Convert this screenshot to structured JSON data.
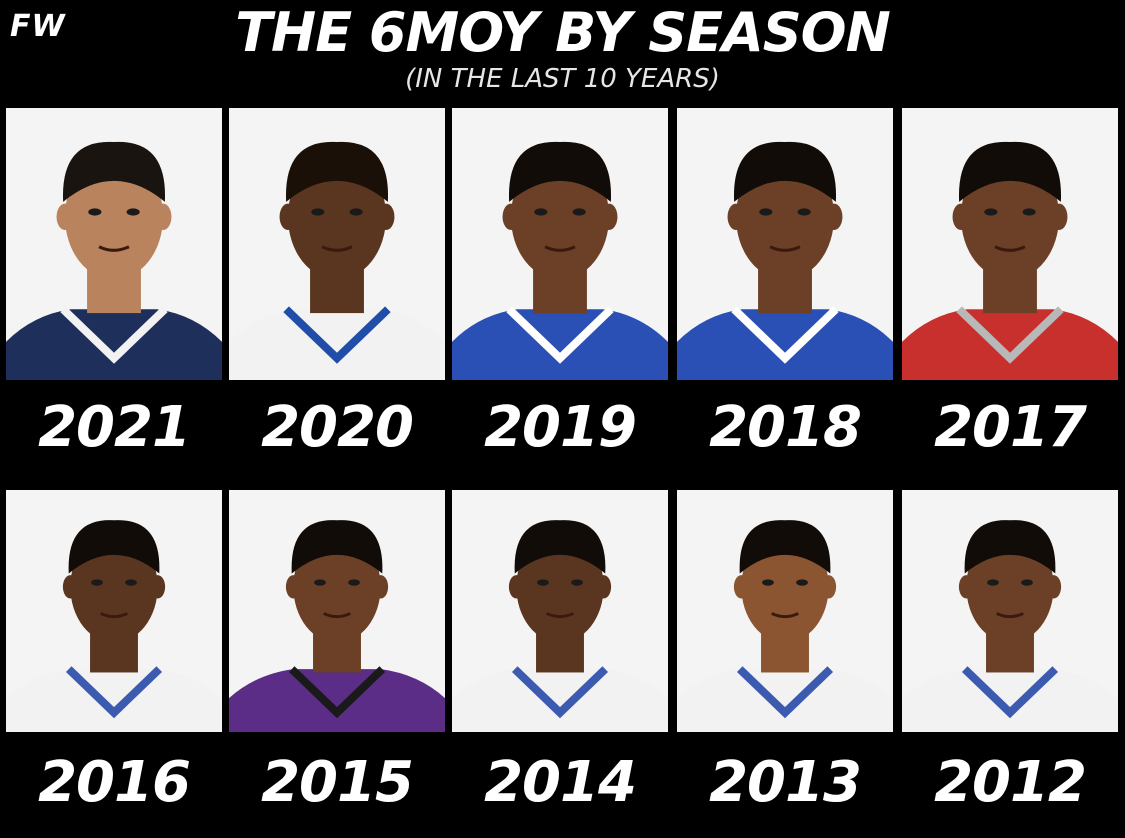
{
  "header": {
    "logo": "FW",
    "title": "THE 6MOY BY SEASON",
    "subtitle": "(IN THE LAST 10 YEARS)"
  },
  "winners": [
    {
      "year": "2021",
      "jersey_color": "#1e2f5c",
      "trim_color": "#f2f2f2",
      "skin": "#b8835d",
      "hair": "#1a1410"
    },
    {
      "year": "2020",
      "jersey_color": "#f2f2f2",
      "trim_color": "#1f4da8",
      "skin": "#5a3620",
      "hair": "#1a1008"
    },
    {
      "year": "2019",
      "jersey_color": "#2a4fb5",
      "trim_color": "#ffffff",
      "skin": "#6b4026",
      "hair": "#120c08"
    },
    {
      "year": "2018",
      "jersey_color": "#2a4fb5",
      "trim_color": "#ffffff",
      "skin": "#6b4026",
      "hair": "#120c08"
    },
    {
      "year": "2017",
      "jersey_color": "#c8302e",
      "trim_color": "#b8b8b8",
      "skin": "#6b4026",
      "hair": "#120c08"
    },
    {
      "year": "2016",
      "jersey_color": "#f2f2f2",
      "trim_color": "#3b5ab0",
      "skin": "#5a3620",
      "hair": "#120c08"
    },
    {
      "year": "2015",
      "jersey_color": "#5b2d86",
      "trim_color": "#1a1a1a",
      "skin": "#6b4026",
      "hair": "#120c08"
    },
    {
      "year": "2014",
      "jersey_color": "#f2f2f2",
      "trim_color": "#3b5ab0",
      "skin": "#5a3620",
      "hair": "#120c08"
    },
    {
      "year": "2013",
      "jersey_color": "#f2f2f2",
      "trim_color": "#3b5ab0",
      "skin": "#8a5530",
      "hair": "#120c08"
    },
    {
      "year": "2012",
      "jersey_color": "#f2f2f2",
      "trim_color": "#3b5ab0",
      "skin": "#6b4026",
      "hair": "#120c08"
    }
  ]
}
